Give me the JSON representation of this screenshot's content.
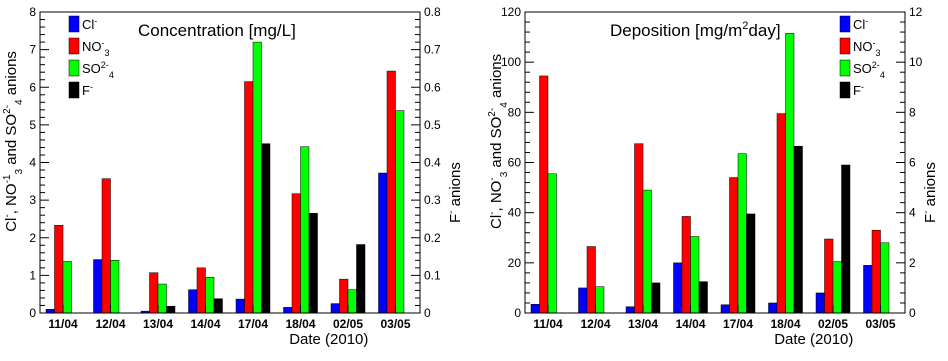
{
  "chart_data": [
    {
      "type": "bar",
      "title": "Concentration [mg/L]",
      "xlabel": "Date (2010)",
      "ylabel": "Cl⁻, NO₃⁻¹ and SO₄²⁻ anions",
      "ylabel_right": "F⁻ anions",
      "categories": [
        "11/04",
        "12/04",
        "13/04",
        "14/04",
        "17/04",
        "18/04",
        "02/05",
        "03/05"
      ],
      "ylim": [
        0,
        8
      ],
      "ylim_right": [
        0,
        0.8
      ],
      "yticks": [
        "0",
        "1",
        "2",
        "3",
        "4",
        "5",
        "6",
        "7",
        "8"
      ],
      "yticks_right": [
        "0",
        "0.1",
        "0.2",
        "0.3",
        "0.4",
        "0.5",
        "0.6",
        "0.7",
        "0.8"
      ],
      "legend": "top-right",
      "grid": false,
      "series": [
        {
          "name": "Cl⁻",
          "color": "#0000ff",
          "axis": "left",
          "values": [
            0.1,
            1.42,
            0.05,
            0.62,
            0.37,
            0.15,
            0.25,
            3.72
          ]
        },
        {
          "name": "NO₃⁻",
          "color": "#ff0000",
          "axis": "left",
          "values": [
            2.33,
            3.57,
            1.07,
            1.2,
            6.15,
            3.17,
            0.9,
            6.43
          ]
        },
        {
          "name": "SO₄²⁻",
          "color": "#00ff00",
          "axis": "left",
          "values": [
            1.37,
            1.4,
            0.77,
            0.95,
            7.2,
            4.42,
            0.62,
            5.38
          ]
        },
        {
          "name": "F⁻",
          "color": "#000000",
          "axis": "right",
          "values": [
            0,
            0,
            0.018,
            0.038,
            0.45,
            0.265,
            0.182,
            0
          ]
        }
      ]
    },
    {
      "type": "bar",
      "title": "Deposition [mg/m²day]",
      "xlabel": "Date (2010)",
      "ylabel": "Cl⁻, NO₃⁻ and SO₄²⁻ anions",
      "ylabel_right": "F⁻ anions",
      "categories": [
        "11/04",
        "12/04",
        "13/04",
        "14/04",
        "17/04",
        "18/04",
        "02/05",
        "03/05"
      ],
      "ylim": [
        0,
        120
      ],
      "ylim_right": [
        0,
        12
      ],
      "yticks": [
        "0",
        "20",
        "40",
        "60",
        "80",
        "100",
        "120"
      ],
      "yticks_right": [
        "0",
        "2",
        "4",
        "6",
        "8",
        "10",
        "12"
      ],
      "legend": "top-right",
      "grid": false,
      "series": [
        {
          "name": "Cl⁻",
          "color": "#0000ff",
          "axis": "left",
          "values": [
            3.5,
            10,
            2.5,
            20,
            3.3,
            4,
            8,
            19
          ]
        },
        {
          "name": "NO₃⁻",
          "color": "#ff0000",
          "axis": "left",
          "values": [
            94.5,
            26.5,
            67.5,
            38.5,
            54,
            79.5,
            29.5,
            33
          ]
        },
        {
          "name": "SO₄²⁻",
          "color": "#00ff00",
          "axis": "left",
          "values": [
            55.5,
            10.5,
            49,
            30.5,
            63.5,
            111.5,
            20.5,
            28
          ]
        },
        {
          "name": "F⁻",
          "color": "#000000",
          "axis": "right",
          "values": [
            0,
            0,
            1.2,
            1.25,
            3.95,
            6.65,
            5.9,
            0
          ]
        }
      ]
    }
  ]
}
